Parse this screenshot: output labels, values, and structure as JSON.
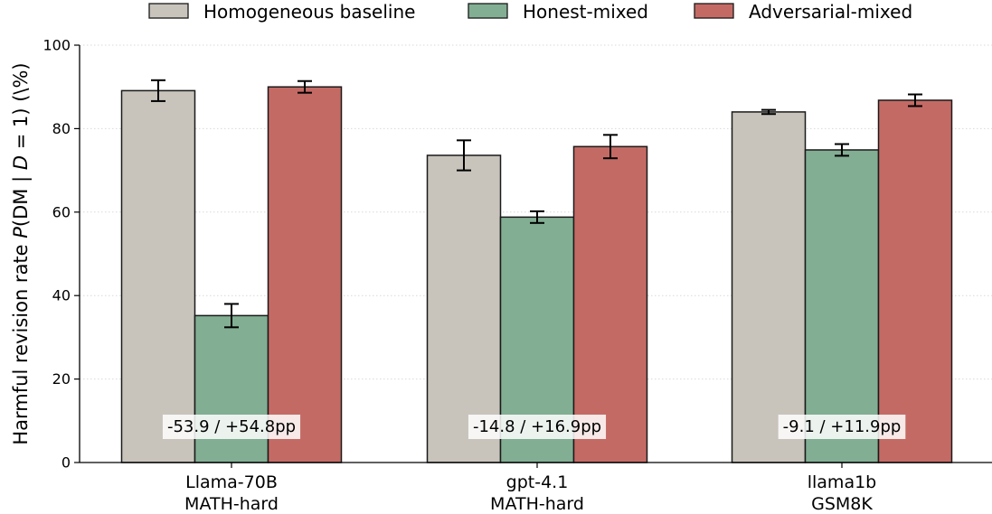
{
  "chart_data": {
    "type": "bar",
    "title": "",
    "xlabel": "",
    "ylabel": {
      "prefix": "Harmful revision rate ",
      "p": "P",
      "mid1": "(DM | ",
      "d": "D",
      "suffix": " = 1) (\\%)"
    },
    "ylim": [
      0,
      100
    ],
    "yticks": [
      "0",
      "20",
      "40",
      "60",
      "80",
      "100"
    ],
    "grid": "horizontal dotted",
    "legend_position": "top",
    "categories": [
      [
        "Llama-70B",
        "MATH-hard"
      ],
      [
        "gpt-4.1",
        "MATH-hard"
      ],
      [
        "llama1b",
        "GSM8K"
      ]
    ],
    "series": [
      {
        "name": "Homogeneous baseline",
        "color": "#c8c4bc",
        "values": [
          89.1,
          73.6,
          84.0
        ],
        "err": [
          2.5,
          3.6,
          0.5
        ]
      },
      {
        "name": "Honest-mixed",
        "color": "#82ae93",
        "values": [
          35.2,
          58.8,
          74.9
        ],
        "err": [
          2.8,
          1.4,
          1.4
        ]
      },
      {
        "name": "Adversarial-mixed",
        "color": "#c46a65",
        "values": [
          90.0,
          75.7,
          86.8
        ],
        "err": [
          1.4,
          2.8,
          1.4
        ]
      }
    ],
    "annotations": [
      "-53.9 / +54.8pp",
      "-14.8 / +16.9pp",
      "-9.1 / +11.9pp"
    ]
  }
}
